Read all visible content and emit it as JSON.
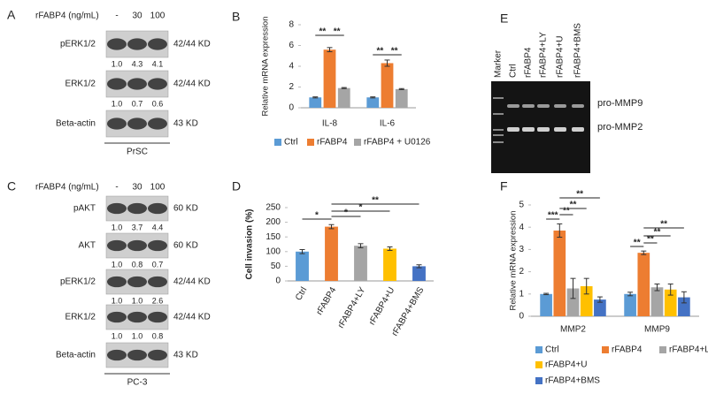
{
  "panel_labels": [
    "A",
    "B",
    "C",
    "D",
    "E",
    "F"
  ],
  "blot_A": {
    "treatment_label": "rFABP4 (ng/mL)",
    "lanes": [
      "-",
      "30",
      "100"
    ],
    "rows": [
      {
        "name": "pERK1/2",
        "size": "42/44 KD",
        "quant": [
          "1.0",
          "4.3",
          "4.1"
        ]
      },
      {
        "name": "ERK1/2",
        "size": "42/44 KD",
        "quant": [
          "1.0",
          "0.7",
          "0.6"
        ]
      },
      {
        "name": "Beta-actin",
        "size": "43 KD"
      }
    ],
    "cell_line": "PrSC"
  },
  "blot_C": {
    "treatment_label": "rFABP4 (ng/mL)",
    "lanes": [
      "-",
      "30",
      "100"
    ],
    "rows": [
      {
        "name": "pAKT",
        "size": "60 KD",
        "quant": [
          "1.0",
          "3.7",
          "4.4"
        ]
      },
      {
        "name": "AKT",
        "size": "60 KD",
        "quant": [
          "1.0",
          "0.8",
          "0.7"
        ]
      },
      {
        "name": "pERK1/2",
        "size": "42/44 KD",
        "quant": [
          "1.0",
          "1.0",
          "2.6"
        ]
      },
      {
        "name": "ERK1/2",
        "size": "42/44 KD",
        "quant": [
          "1.0",
          "1.0",
          "0.8"
        ]
      },
      {
        "name": "Beta-actin",
        "size": "43 KD"
      }
    ],
    "cell_line": "PC-3"
  },
  "gel_E": {
    "lanes": [
      "Marker",
      "Ctrl",
      "rFABP4",
      "rFABP4+LY",
      "rFABP4+U",
      "rFABP4+BMS"
    ],
    "bands": [
      "pro-MMP9",
      "pro-MMP2"
    ]
  },
  "chart_data": [
    {
      "type": "bar",
      "ylabel": "Relative mRNA expression",
      "categories": [
        "IL-8",
        "IL-6"
      ],
      "series": [
        {
          "name": "Ctrl",
          "color": "#5b9bd5",
          "values": [
            1,
            1
          ],
          "errors": [
            0.05,
            0.05
          ]
        },
        {
          "name": "rFABP4",
          "color": "#ed7d31",
          "values": [
            5.6,
            4.3
          ],
          "errors": [
            0.2,
            0.3
          ]
        },
        {
          "name": "rFABP4 + U0126",
          "color": "#a5a5a5",
          "values": [
            1.9,
            1.8
          ],
          "errors": [
            0.05,
            0.05
          ]
        }
      ],
      "ylim": [
        0,
        8
      ],
      "yticks": [
        0,
        2,
        4,
        6,
        8
      ],
      "annotations": [
        "**",
        "**",
        "**",
        "**"
      ],
      "legend": "bottom"
    },
    {
      "type": "bar",
      "ylabel": "Cell invasion (%)",
      "categories": [
        "Ctrl",
        "rFABP4",
        "rFABP4+LY",
        "rFABP4+U",
        "rFABP4+BMS"
      ],
      "values": [
        100,
        185,
        120,
        110,
        50
      ],
      "errors": [
        7,
        7,
        7,
        6,
        5
      ],
      "colors": [
        "#5b9bd5",
        "#ed7d31",
        "#a5a5a5",
        "#ffc000",
        "#4472c4"
      ],
      "ylim": [
        0,
        250
      ],
      "yticks": [
        0,
        50,
        100,
        150,
        200,
        250
      ],
      "annotations": [
        "*",
        "*",
        "*",
        "**"
      ]
    },
    {
      "type": "bar",
      "ylabel": "Relative mRNA expression",
      "categories": [
        "MMP2",
        "MMP9"
      ],
      "series": [
        {
          "name": "Ctrl",
          "color": "#5b9bd5",
          "values": [
            1.0,
            1.0
          ],
          "errors": [
            0.03,
            0.08
          ]
        },
        {
          "name": "rFABP4",
          "color": "#ed7d31",
          "values": [
            3.85,
            2.85
          ],
          "errors": [
            0.3,
            0.08
          ]
        },
        {
          "name": "rFABP4+LY",
          "color": "#a5a5a5",
          "values": [
            1.25,
            1.3
          ],
          "errors": [
            0.45,
            0.15
          ]
        },
        {
          "name": "rFABP4+U",
          "color": "#ffc000",
          "values": [
            1.35,
            1.2
          ],
          "errors": [
            0.35,
            0.25
          ]
        },
        {
          "name": "rFABP4+BMS",
          "color": "#4472c4",
          "values": [
            0.75,
            0.85
          ],
          "errors": [
            0.12,
            0.25
          ]
        }
      ],
      "ylim": [
        0,
        5
      ],
      "yticks": [
        0,
        1,
        2,
        3,
        4,
        5
      ],
      "annotations": [
        "***",
        "**",
        "**",
        "**",
        "**",
        "**",
        "**",
        "**"
      ],
      "legend": "bottom"
    }
  ]
}
